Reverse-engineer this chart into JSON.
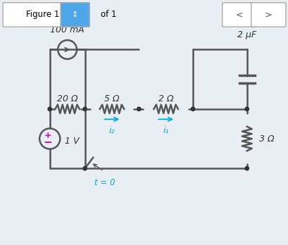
{
  "bg_color": "#f0f4f8",
  "fig_bg": "#e8eef4",
  "circuit_color": "#555555",
  "cyan_color": "#00aadd",
  "title_bar_color": "#4da6e8",
  "title_text": "Figure 1",
  "of_text": "of 1",
  "node_color": "#333333",
  "label_color": "#333333",
  "resistor_100mA_label": "100 mA",
  "resistor_20_label": "20 Ω",
  "resistor_5_label": "5 Ω",
  "resistor_2_label": "2 Ω",
  "resistor_3_label": "3 Ω",
  "cap_label": "2 μF",
  "volt_label": "1 V",
  "t_label": "t = 0",
  "i2_label": "i₂",
  "i1_label": "i₁"
}
